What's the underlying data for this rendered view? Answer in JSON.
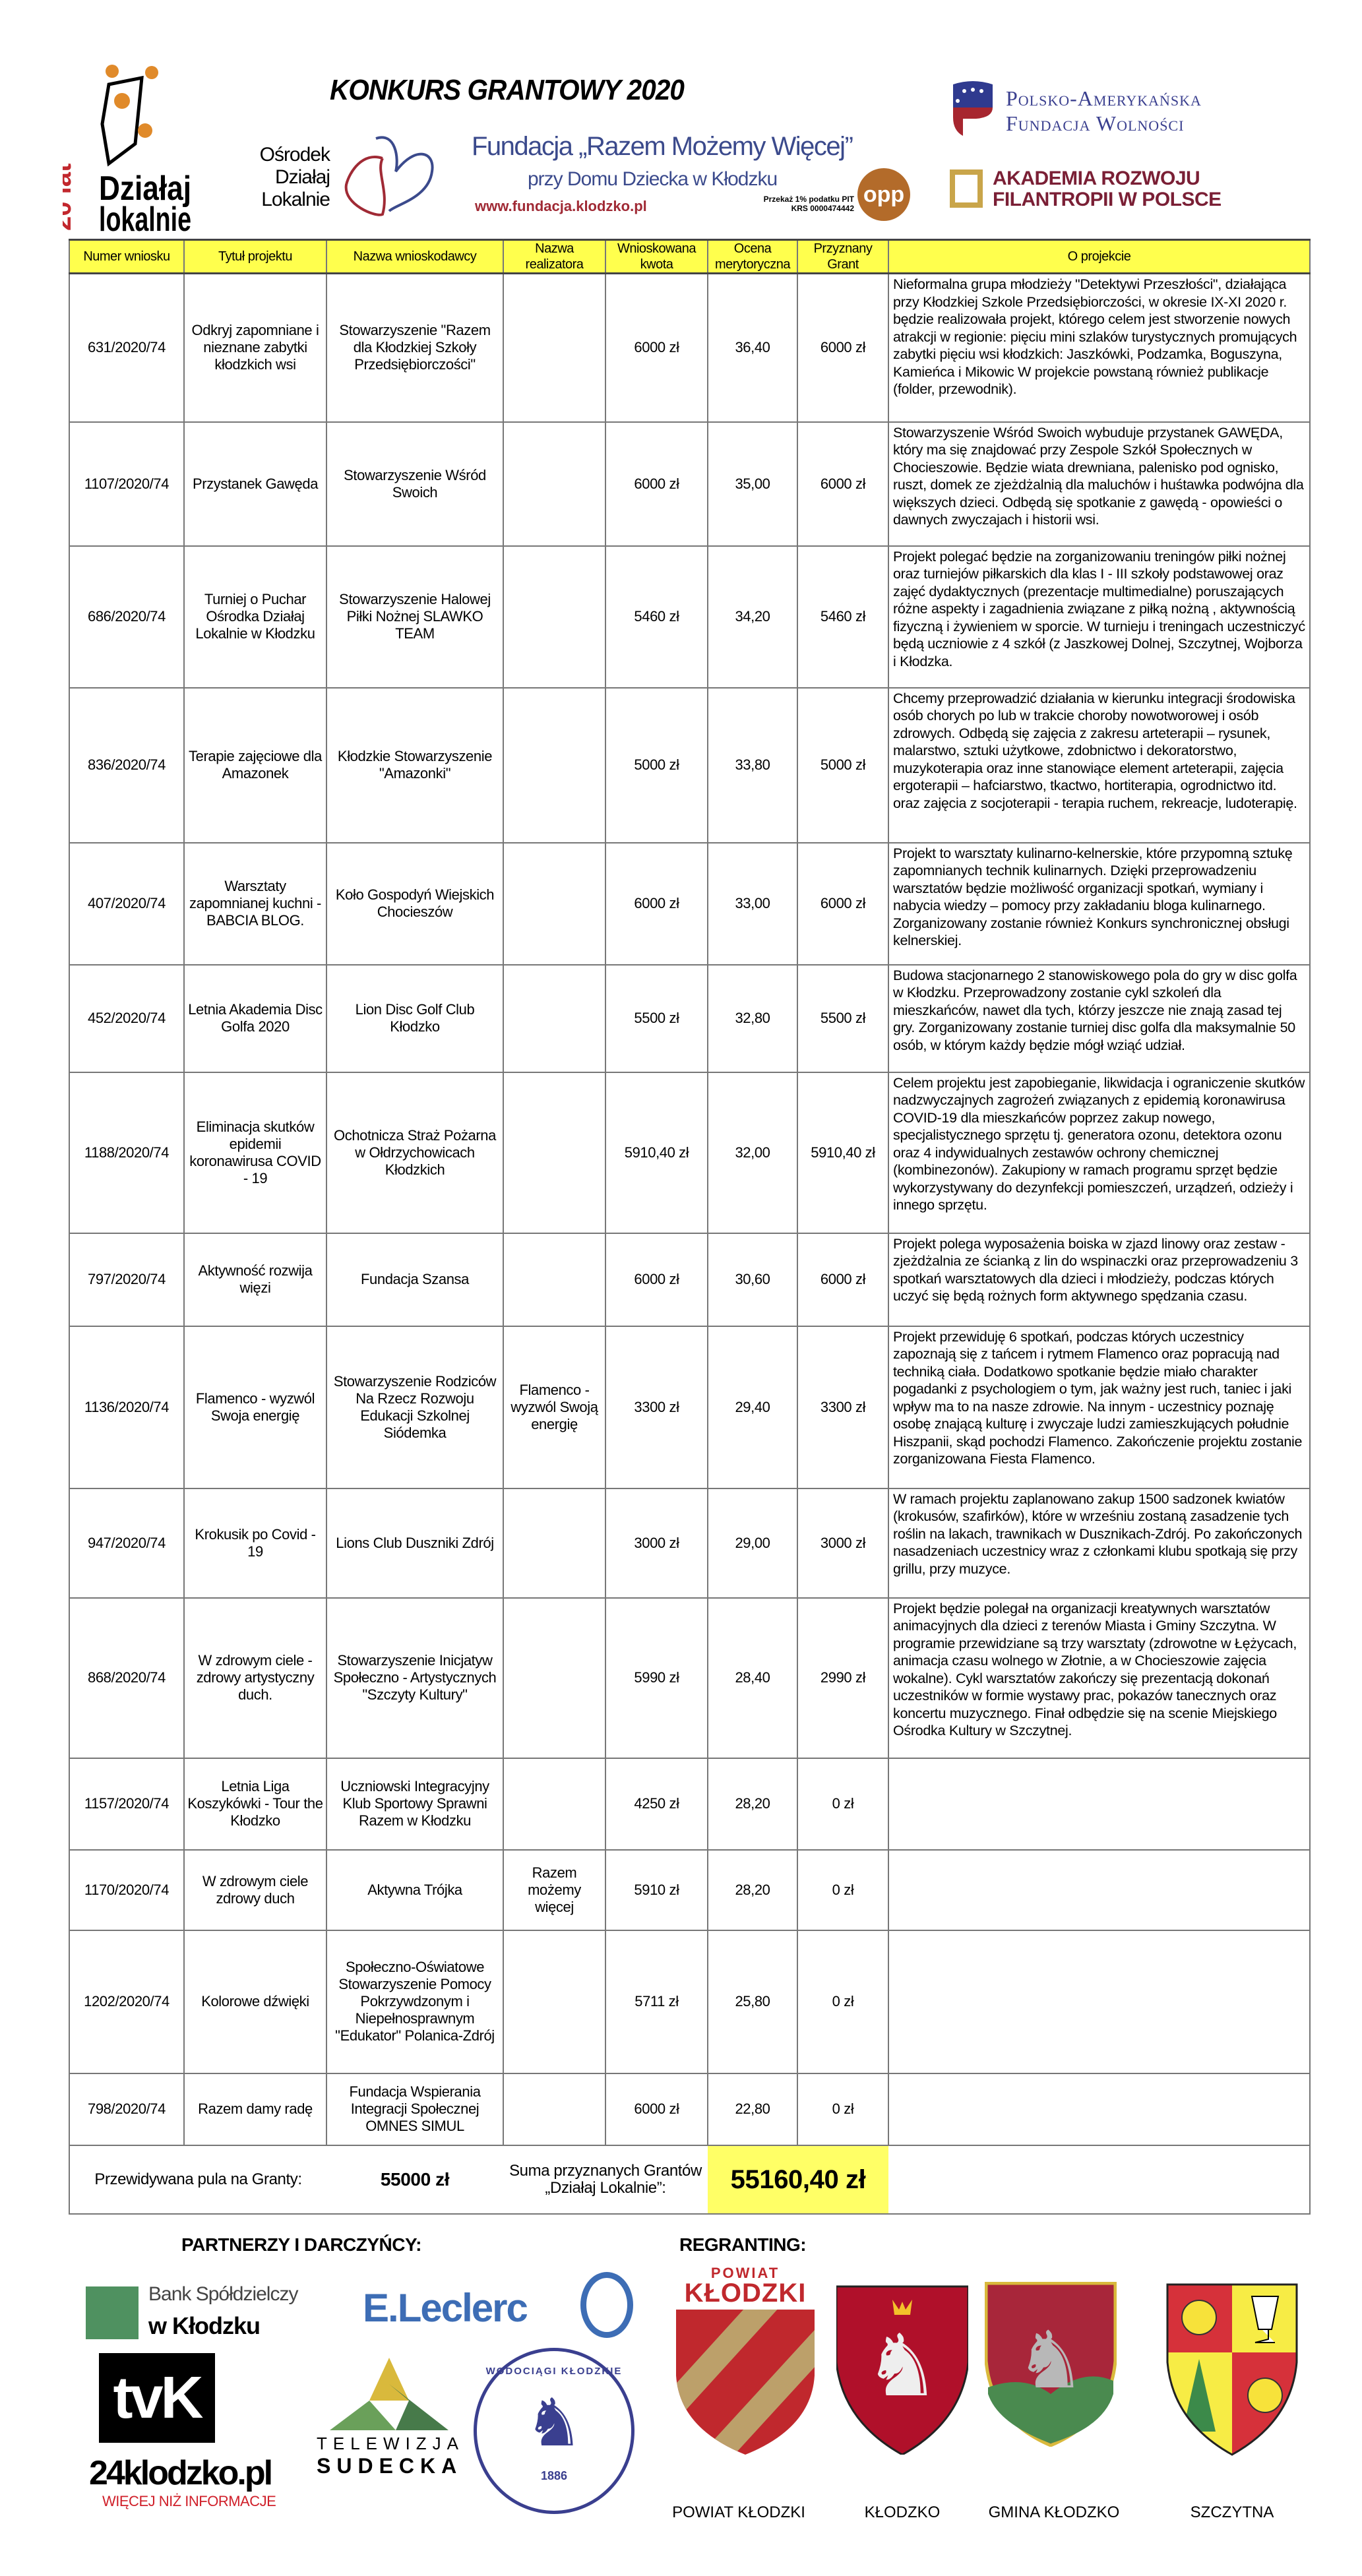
{
  "header": {
    "title": "KONKURS GRANTOWY 2020",
    "left_logo": {
      "text": "Działaj lokalnie",
      "badge": "20 lat"
    },
    "osrodek": [
      "Ośrodek",
      "Działaj",
      "Lokalnie"
    ],
    "fundacja": {
      "name": "Fundacja „Razem Możemy Więcej”",
      "subtitle": "przy Domu Dziecka w Kłodzku",
      "url": "www.fundacja.klodzko.pl",
      "tax_note": "Przekaż 1% podatku PIT",
      "krs": "KRS 0000474442",
      "opp": "opp"
    },
    "pafw": [
      "Polsko-Amerykańska",
      "Fundacja Wolności"
    ],
    "akademia": [
      "AKADEMIA ROZWOJU",
      "FILANTROPII W POLSCE"
    ]
  },
  "table": {
    "columns": [
      "Numer wniosku",
      "Tytuł projektu",
      "Nazwa wnioskodawcy",
      "Nazwa realizatora",
      "Wnioskowana kwota",
      "Ocena merytoryczna",
      "Przyznany Grant",
      "O projekcie"
    ],
    "rows": [
      {
        "id": "631/2020/74",
        "title": "Odkryj zapomniane i nieznane zabytki kłodzkich wsi",
        "applicant": "Stowarzyszenie \"Razem dla Kłodzkiej Szkoły Przedsiębiorczości\"",
        "implementer": "",
        "requested": "6000 zł",
        "score": "36,40",
        "granted": "6000 zł",
        "description": "Nieformalna grupa młodzieży \"Detektywi Przeszłości\", działająca przy Kłodzkiej Szkole Przedsiębiorczości, w okresie IX-XI 2020 r. będzie realizowała projekt, którego celem  jest stworzenie nowych atrakcji w regionie: pięciu mini szlaków turystycznych promujących zabytki pięciu wsi kłodzkich: Jaszkówki, Podzamka, Boguszyna, Kamieńca i Mikowic  W projekcie powstaną również publikacje (folder, przewodnik)."
      },
      {
        "id": "1107/2020/74",
        "title": "Przystanek Gawęda",
        "applicant": "Stowarzyszenie Wśród Swoich",
        "implementer": "",
        "requested": "6000 zł",
        "score": "35,00",
        "granted": "6000 zł",
        "description": "Stowarzyszenie Wśród Swoich wybuduje przystanek GAWĘDA, który ma się znajdować przy Zespole Szkół Społecznych w Chocieszowie. Będzie wiata drewniana, palenisko pod ognisko, ruszt, domek ze zjeżdżalnią dla maluchów i huśtawka podwójna dla większych dzieci. Odbędą się spotkanie z gawędą - opowieści o dawnych zwyczajach i historii wsi."
      },
      {
        "id": "686/2020/74",
        "title": "Turniej o Puchar Ośrodka Działaj Lokalnie w Kłodzku",
        "applicant": "Stowarzyszenie Halowej Piłki Nożnej SLAWKO TEAM",
        "implementer": "",
        "requested": "5460 zł",
        "score": "34,20",
        "granted": "5460 zł",
        "description": "Projekt polegać będzie na zorganizowaniu treningów piłki nożnej oraz turniejów piłkarskich dla klas I - III szkoły podstawowej oraz zajęć dydaktycznych (prezentacje multimedialne) poruszających różne aspekty i zagadnienia związane z piłką nożną , aktywnością fizyczną i żywieniem w sporcie. W turnieju i treningach uczestniczyć będą uczniowie z 4 szkół (z Jaszkowej Dolnej, Szczytnej, Wojborza i Kłodzka."
      },
      {
        "id": "836/2020/74",
        "title": "Terapie zajęciowe dla Amazonek",
        "applicant": "Kłodzkie Stowarzyszenie \"Amazonki\"",
        "implementer": "",
        "requested": "5000 zł",
        "score": "33,80",
        "granted": "5000 zł",
        "description": "Chcemy przeprowadzić działania w kierunku integracji środowiska osób chorych po lub w trakcie choroby nowotworowej i osób zdrowych. Odbędą się zajęcia z zakresu arteterapii – rysunek, malarstwo, sztuki użytkowe, zdobnictwo i dekoratorstwo, muzykoterapia oraz inne stanowiące element arteterapii, zajęcia ergoterapii – hafciarstwo, tkactwo, hortiterapia, ogrodnictwo itd. oraz zajęcia z socjoterapii - terapia ruchem, rekreacje, ludoterapię."
      },
      {
        "id": "407/2020/74",
        "title": "Warsztaty zapomnianej kuchni - BABCIA BLOG.",
        "applicant": "Koło Gospodyń Wiejskich Chocieszów",
        "implementer": "",
        "requested": "6000 zł",
        "score": "33,00",
        "granted": "6000 zł",
        "description": "Projekt to warsztaty kulinarno-kelnerskie, które przypomną sztukę zapomnianych technik kulinarnych. Dzięki przeprowadzeniu warsztatów będzie możliwość organizacji spotkań, wymiany i nabycia wiedzy – pomocy przy zakładaniu bloga kulinarnego. Zorganizowany zostanie również Konkurs synchronicznej obsługi kelnerskiej."
      },
      {
        "id": "452/2020/74",
        "title": "Letnia Akademia Disc Golfa 2020",
        "applicant": "Lion Disc Golf Club Kłodzko",
        "implementer": "",
        "requested": "5500 zł",
        "score": "32,80",
        "granted": "5500 zł",
        "description": "Budowa stacjonarnego 2 stanowiskowego pola do gry w disc golfa w Kłodzku. Przeprowadzony zostanie cykl szkoleń dla mieszkańców, nawet dla tych, którzy jeszcze nie znają zasad tej gry. Zorganizowany zostanie turniej disc golfa dla maksymalnie 50 osób, w którym każdy będzie mógł wziąć udział."
      },
      {
        "id": "1188/2020/74",
        "title": "Eliminacja skutków epidemii koronawirusa COVID - 19",
        "applicant": "Ochotnicza Straż Pożarna w Ołdrzychowicach Kłodzkich",
        "implementer": "",
        "requested": "5910,40 zł",
        "score": "32,00",
        "granted": "5910,40 zł",
        "description": "Celem projektu jest zapobieganie, likwidacja i ograniczenie skutków nadzwyczajnych zagrożeń związanych z epidemią koronawirusa COVID-19 dla mieszkańców poprzez zakup nowego, specjalistycznego sprzętu tj. generatora ozonu, detektora ozonu oraz 4 indywidualnych zestawów ochrony chemicznej (kombinezonów). Zakupiony w ramach programu sprzęt będzie wykorzystywany do dezynfekcji pomieszczeń, urządzeń, odzieży i innego sprzętu."
      },
      {
        "id": "797/2020/74",
        "title": "Aktywność rozwija więzi",
        "applicant": "Fundacja Szansa",
        "implementer": "",
        "requested": "6000 zł",
        "score": "30,60",
        "granted": "6000 zł",
        "description": "Projekt polega wyposażenia boiska w zjazd linowy oraz zestaw - zjeżdżalnia ze ścianką z lin do wspinaczki oraz przeprowadzeniu 3 spotkań warsztatowych dla dzieci i młodzieży, podczas których uczyć się będą rożnych form aktywnego spędzania czasu."
      },
      {
        "id": "1136/2020/74",
        "title": "Flamenco - wyzwól Swoja energię",
        "applicant": "Stowarzyszenie Rodziców Na Rzecz Rozwoju Edukacji Szkolnej Siódemka",
        "implementer": "Flamenco - wyzwól Swoją energię",
        "requested": "3300 zł",
        "score": "29,40",
        "granted": "3300 zł",
        "description": "Projekt przewiduję 6 spotkań, podczas których uczestnicy zapoznają się z tańcem i rytmem Flamenco oraz popracują nad techniką ciała. Dodatkowo spotkanie będzie miało charakter pogadanki z psychologiem o tym, jak ważny jest ruch, taniec i jaki wpływ ma to na nasze zdrowie. Na innym  - uczestnicy poznaję osobę znającą kulturę i zwyczaje ludzi zamieszkujących południe Hiszpanii, skąd pochodzi Flamenco. Zakończenie projektu zostanie zorganizowana Fiesta Flamenco."
      },
      {
        "id": "947/2020/74",
        "title": "Krokusik po Covid - 19",
        "applicant": "Lions Club Duszniki Zdrój",
        "implementer": "",
        "requested": "3000 zł",
        "score": "29,00",
        "granted": "3000 zł",
        "description": "W ramach projektu zaplanowano zakup 1500 sadzonek kwiatów (krokusów, szafirków), które w wrześniu zostaną zasadzenie tych roślin na lakach, trawnikach w Dusznikach-Zdrój. Po zakończonych nasadzeniach uczestnicy wraz z członkami klubu spotkają się przy grillu, przy muzyce."
      },
      {
        "id": "868/2020/74",
        "title": "W zdrowym ciele - zdrowy artystyczny duch.",
        "applicant": "Stowarzyszenie Inicjatyw Społeczno - Artystycznych \"Szczyty Kultury\"",
        "implementer": "",
        "requested": "5990 zł",
        "score": "28,40",
        "granted": "2990 zł",
        "description": "Projekt będzie polegał na organizacji kreatywnych warsztatów animacyjnych dla dzieci z terenów Miasta i Gminy Szczytna. W programie przewidziane są trzy warsztaty (zdrowotne w Łężycach, animacja czasu wolnego w Złotnie, a w Chocieszowie zajęcia wokalne). Cykl warsztatów zakończy się prezentacją dokonań uczestników w formie wystawy prac, pokazów tanecznych oraz koncertu muzycznego. Finał odbędzie się na scenie Miejskiego Ośrodka Kultury w Szczytnej."
      },
      {
        "id": "1157/2020/74",
        "title": "Letnia Liga Koszykówki - Tour the Kłodzko",
        "applicant": "Uczniowski Integracyjny Klub Sportowy Sprawni Razem w Kłodzku",
        "implementer": "",
        "requested": "4250 zł",
        "score": "28,20",
        "granted": "0 zł",
        "description": ""
      },
      {
        "id": "1170/2020/74",
        "title": "W zdrowym ciele zdrowy duch",
        "applicant": "Aktywna Trójka",
        "implementer": "Razem możemy więcej",
        "requested": "5910 zł",
        "score": "28,20",
        "granted": "0 zł",
        "description": ""
      },
      {
        "id": "1202/2020/74",
        "title": "Kolorowe dźwięki",
        "applicant": "Społeczno-Oświatowe Stowarzyszenie Pomocy Pokrzywdzonym i Niepełnosprawnym \"Edukator\" Polanica-Zdrój",
        "implementer": "",
        "requested": "5711 zł",
        "score": "25,80",
        "granted": "0 zł",
        "description": ""
      },
      {
        "id": "798/2020/74",
        "title": "Razem damy radę",
        "applicant": "Fundacja Wspierania Integracji Społecznej OMNES SIMUL",
        "implementer": "",
        "requested": "6000 zł",
        "score": "22,80",
        "granted": "0 zł",
        "description": ""
      }
    ],
    "footer": {
      "pool_label": "Przewidywana pula na Granty:",
      "pool_value": "55000 zł",
      "sum_label": "Suma przyznanych Grantów „Działaj Lokalnie”:",
      "sum_value": "55160,40 zł"
    }
  },
  "partners": {
    "heading": "PARTNERZY I DARCZYŃCY:",
    "bank": [
      "Bank Spółdzielczy",
      "w Kłodzku"
    ],
    "leclerc": "E.Leclerc",
    "tvk": "tvK",
    "telewizja": [
      "TELEWIZJA",
      "SUDECKA"
    ],
    "wodociagi": {
      "text": "WODOCIĄGI KŁODZKIE",
      "year": "1886"
    },
    "portal": {
      "name": "24klodzko.pl",
      "tagline": "WIĘCEJ NIŻ INFORMACJE"
    }
  },
  "regranting": {
    "heading": "REGRANTING:",
    "powiat_logo_text": [
      "POWIAT",
      "KŁODZKI"
    ],
    "items": [
      "POWIAT KŁODZKI",
      "KŁODZKO",
      "GMINA KŁODZKO",
      "SZCZYTNA"
    ]
  },
  "colors": {
    "header_yellow": "#ffff4d",
    "sum_yellow": "#ffff66",
    "pafw_blue": "#3a3f8f",
    "akademia_red": "#7a1f35",
    "fundacja_blue": "#3b4a8c"
  }
}
